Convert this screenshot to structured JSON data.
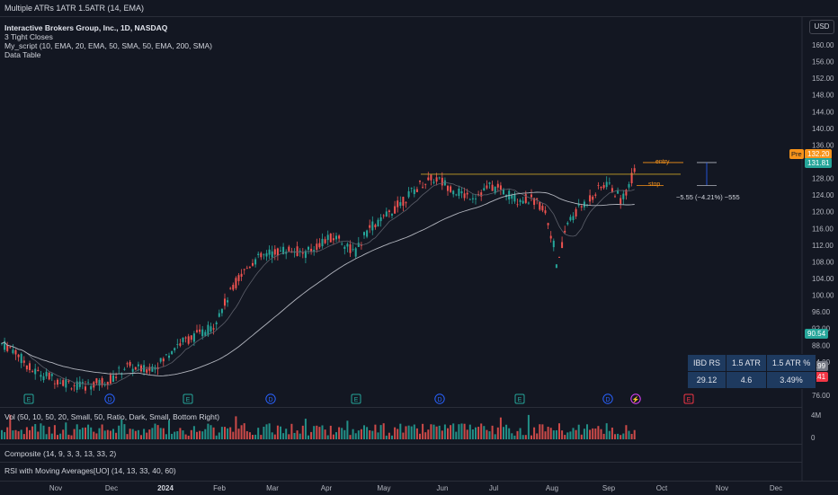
{
  "header": {
    "title": "Multiple ATRs 1ATR 1.5ATR (14, EMA)"
  },
  "legend": {
    "symbol_line": "Interactive Brokers Group, Inc., 1D, NASDAQ",
    "line2": "3 Tight Closes",
    "line3": "My_script (10, EMA, 20, EMA, 50, SMA, 50, EMA, 200, SMA)",
    "line4": "Data Table"
  },
  "price_axis": {
    "currency_button": "USD",
    "ticks": [
      "160.00",
      "156.00",
      "152.00",
      "148.00",
      "144.00",
      "140.00",
      "136.00",
      "128.00",
      "124.00",
      "120.00",
      "116.00",
      "112.00",
      "108.00",
      "104.00",
      "100.00",
      "96.00",
      "92.00",
      "88.00",
      "84.00",
      "76.00"
    ],
    "badges": [
      {
        "label": "132.20",
        "color": "#f7931a"
      },
      {
        "label": "131.81",
        "color": "#26a69a"
      },
      {
        "label": "90.54",
        "color": "#26a69a"
      },
      {
        "label": "82.99",
        "color": "#787b86"
      },
      {
        "label": "80.41",
        "color": "#f23645"
      }
    ],
    "pre_tag": "Pre"
  },
  "annotations": {
    "entry_label": "entry",
    "stop_label": "stop",
    "risk_text": "−5.55 (−4.21%) −555"
  },
  "events": [
    "E",
    "D",
    "E",
    "D",
    "E",
    "D",
    "E",
    "D",
    "⚡",
    "E"
  ],
  "data_table": {
    "headers": [
      "IBD RS",
      "1.5 ATR",
      "1.5 ATR %"
    ],
    "values": [
      "29.12",
      "4.6",
      "3.49%"
    ]
  },
  "panes": {
    "volume_title": "Vol (50, 10, 50, 20, Small, 50, Ratio, Dark, Small, Bottom Right)",
    "volume_ticks": [
      "4M",
      "0"
    ],
    "composite_title": "Composite (14, 9, 3, 3, 13, 33, 2)",
    "rsi_title": "RSI with Moving Averages[UO] (14, 13, 33, 40, 60)"
  },
  "time_axis": [
    "Nov",
    "Dec",
    "2024",
    "Feb",
    "Mar",
    "Apr",
    "May",
    "Jun",
    "Jul",
    "Aug",
    "Sep",
    "Oct",
    "Nov",
    "Dec"
  ],
  "colors": {
    "up": "#26a69a",
    "down": "#ef5350",
    "ma_light": "#b2b5be",
    "ma_dark": "#5d606b",
    "entry": "#f7931a"
  }
}
